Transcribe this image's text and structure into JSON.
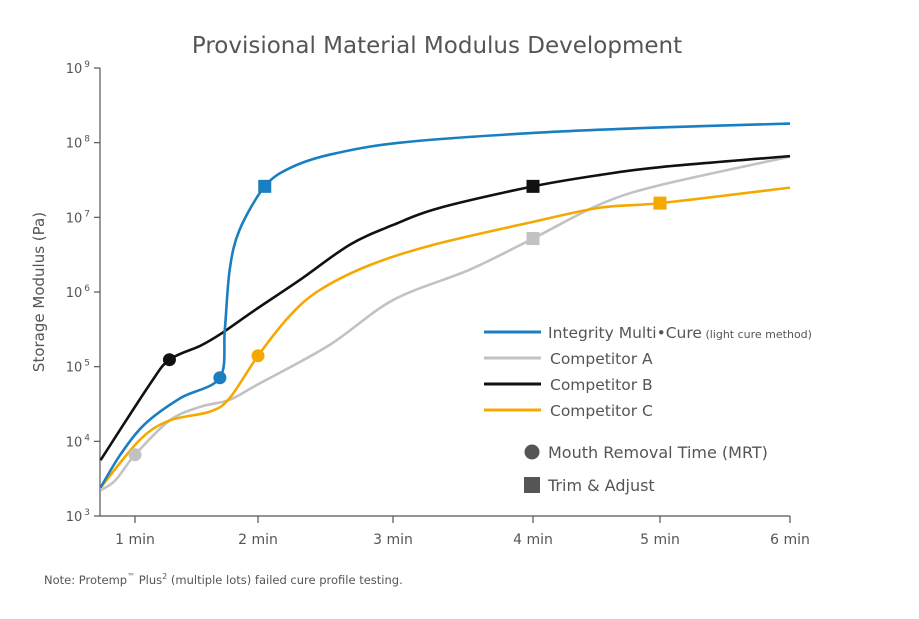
{
  "chart_data": {
    "type": "line",
    "title": "Provisional Material Modulus Development",
    "xlabel": "",
    "ylabel": "Storage Modulus (Pa)",
    "y_scale": "log",
    "ylim": [
      1000,
      1000000000
    ],
    "y_ticks": [
      {
        "base": "10",
        "exp": "3"
      },
      {
        "base": "10",
        "exp": "4"
      },
      {
        "base": "10",
        "exp": "5"
      },
      {
        "base": "10",
        "exp": "6"
      },
      {
        "base": "10",
        "exp": "7"
      },
      {
        "base": "10",
        "exp": "8"
      },
      {
        "base": "10",
        "exp": "9"
      }
    ],
    "x_ticks": [
      "1 min",
      "2 min",
      "3 min",
      "4 min",
      "5 min",
      "6 min"
    ],
    "xlim": [
      0.72,
      6
    ],
    "grid": false,
    "legend_placement": "right",
    "series": [
      {
        "name": "Integrity Multi•Cure",
        "name_note": "(light cure method)",
        "color": "#1a7fc1",
        "x": [
          0.72,
          0.88,
          1.08,
          1.37,
          1.69,
          1.73,
          1.77,
          1.85,
          2.05,
          2.24,
          2.53,
          3.05,
          4.0,
          5.0,
          6.0
        ],
        "y": [
          2400,
          6600,
          17000,
          38000,
          71000,
          310000,
          2000000,
          6800000,
          26000000,
          46000000,
          69000000,
          100000000,
          135000000,
          160000000,
          180000000
        ],
        "mrt": {
          "x": 1.69,
          "y": 71000
        },
        "trim": {
          "x": 2.05,
          "y": 26000000
        }
      },
      {
        "name": "Competitor A",
        "color": "#c2c2c2",
        "x": [
          0.72,
          0.84,
          1.0,
          1.28,
          1.53,
          1.77,
          2.0,
          2.53,
          3.0,
          3.55,
          4.0,
          4.53,
          5.0,
          6.0
        ],
        "y": [
          2200,
          3000,
          6600,
          19000,
          29000,
          36000,
          58000,
          195000,
          780000,
          2000000,
          5200000,
          15000000,
          27000000,
          65000000
        ],
        "mrt": {
          "x": 1.0,
          "y": 6600
        },
        "trim": {
          "x": 4.0,
          "y": 5200000
        }
      },
      {
        "name": "Competitor B",
        "color": "#111111",
        "x": [
          0.72,
          1.12,
          1.28,
          1.53,
          1.69,
          1.98,
          2.31,
          2.68,
          3.0,
          3.34,
          4.0,
          4.53,
          5.0,
          6.0
        ],
        "y": [
          5600,
          58000,
          124000,
          190000,
          270000,
          580000,
          1450000,
          4300000,
          7900000,
          13500000,
          26000000,
          37000000,
          47000000,
          66000000
        ],
        "mrt": {
          "x": 1.28,
          "y": 124000
        },
        "trim": {
          "x": 4.0,
          "y": 26000000
        }
      },
      {
        "name": "Competitor C",
        "color": "#f5a800",
        "x": [
          0.72,
          1.04,
          1.28,
          1.61,
          1.77,
          2.0,
          2.24,
          2.46,
          2.83,
          3.29,
          4.0,
          4.53,
          5.0,
          6.0
        ],
        "y": [
          2400,
          10500,
          19000,
          25000,
          38000,
          140000,
          490000,
          1070000,
          2300000,
          4300000,
          8700000,
          13500000,
          15500000,
          25000000
        ],
        "mrt": {
          "x": 2.0,
          "y": 140000
        },
        "trim": {
          "x": 5.0,
          "y": 15500000
        }
      }
    ],
    "marker_legend": [
      {
        "shape": "circle",
        "label": "Mouth Removal Time (MRT)",
        "color": "#555555"
      },
      {
        "shape": "square",
        "label": "Trim & Adjust",
        "color": "#555555"
      }
    ]
  },
  "note": {
    "prefix": "Note: Protemp",
    "tm": "™",
    "mid": " Plus",
    "sup": "2",
    "suffix": " (multiple lots) failed cure profile testing."
  }
}
